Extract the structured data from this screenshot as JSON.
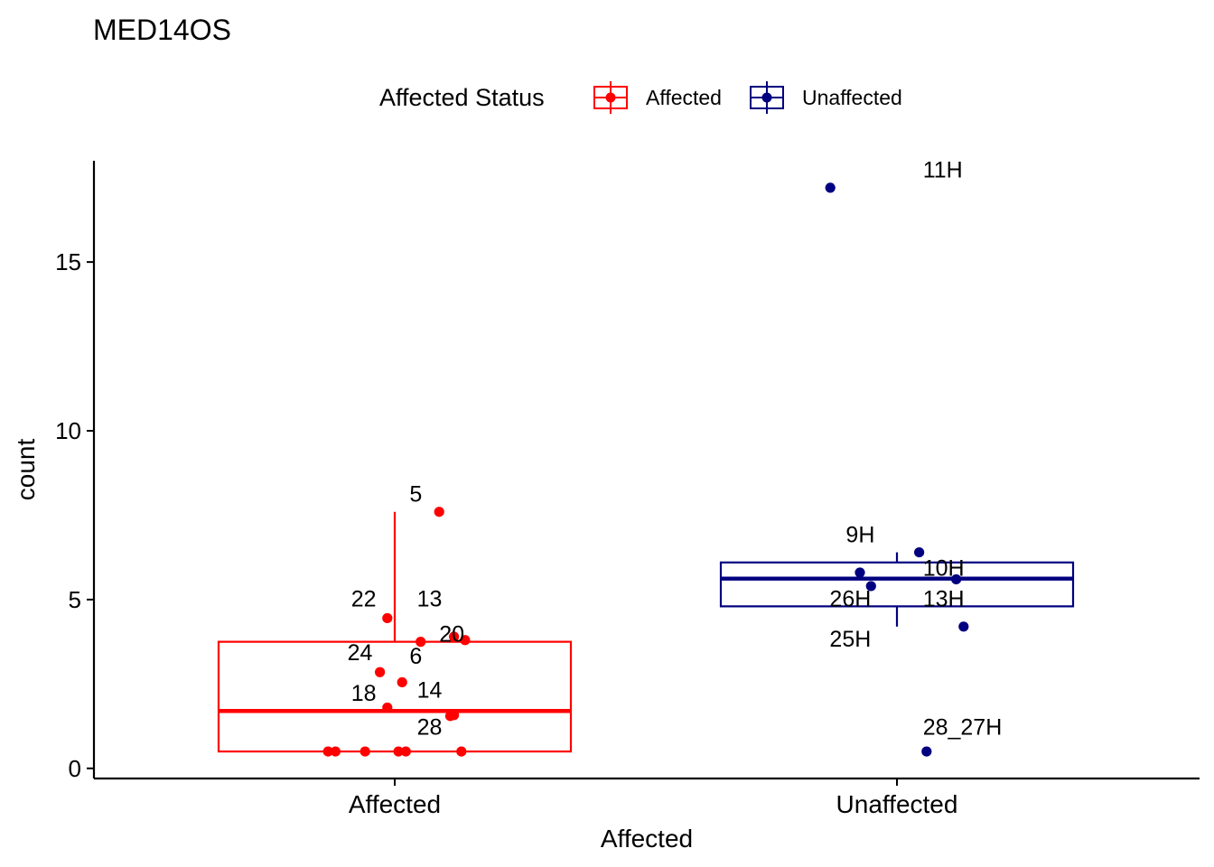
{
  "chart_data": {
    "type": "boxplot",
    "title": "MED14OS",
    "xlabel": "Affected",
    "ylabel": "count",
    "ylim": [
      -0.3,
      18.0
    ],
    "yticks": [
      0,
      5,
      10,
      15
    ],
    "categories": [
      "Affected",
      "Unaffected"
    ],
    "grid": false,
    "legend": {
      "title": "Affected Status",
      "position": "top",
      "entries": [
        {
          "label": "Affected",
          "color": "#ff0000"
        },
        {
          "label": "Unaffected",
          "color": "#000080"
        }
      ]
    },
    "series": [
      {
        "name": "Affected",
        "color": "#ff0000",
        "box": {
          "whisker_low": 0.5,
          "q1": 0.5,
          "median": 1.7,
          "q3": 3.75,
          "whisker_high": 7.6
        },
        "points": [
          {
            "x": 0.12,
            "y": 7.6
          },
          {
            "x": -0.02,
            "y": 4.45
          },
          {
            "x": 0.07,
            "y": 3.75
          },
          {
            "x": 0.16,
            "y": 3.9
          },
          {
            "x": 0.19,
            "y": 3.8
          },
          {
            "x": -0.04,
            "y": 2.85
          },
          {
            "x": 0.02,
            "y": 2.55
          },
          {
            "x": -0.02,
            "y": 1.8
          },
          {
            "x": 0.16,
            "y": 1.58
          },
          {
            "x": 0.15,
            "y": 1.55
          },
          {
            "x": -0.18,
            "y": 0.5
          },
          {
            "x": -0.16,
            "y": 0.5
          },
          {
            "x": -0.08,
            "y": 0.5
          },
          {
            "x": 0.01,
            "y": 0.5
          },
          {
            "x": 0.03,
            "y": 0.5
          },
          {
            "x": 0.18,
            "y": 0.5
          }
        ],
        "labels": [
          {
            "text": "5",
            "x": 0.04,
            "y": 7.9
          },
          {
            "text": "22",
            "x": -0.05,
            "y": 4.8
          },
          {
            "text": "13",
            "x": 0.06,
            "y": 4.8
          },
          {
            "text": "20",
            "x": 0.12,
            "y": 3.75
          },
          {
            "text": "24",
            "x": -0.06,
            "y": 3.2
          },
          {
            "text": "6",
            "x": 0.04,
            "y": 3.1
          },
          {
            "text": "18",
            "x": -0.05,
            "y": 2.0
          },
          {
            "text": "14",
            "x": 0.06,
            "y": 2.1
          },
          {
            "text": "28",
            "x": 0.06,
            "y": 1.0
          }
        ]
      },
      {
        "name": "Unaffected",
        "color": "#000080",
        "box": {
          "whisker_low": 4.2,
          "q1": 4.8,
          "median": 5.62,
          "q3": 6.1,
          "whisker_high": 6.4
        },
        "points": [
          {
            "x": -0.18,
            "y": 17.2
          },
          {
            "x": 0.06,
            "y": 6.4
          },
          {
            "x": -0.1,
            "y": 5.8
          },
          {
            "x": -0.07,
            "y": 5.4
          },
          {
            "x": 0.16,
            "y": 5.6
          },
          {
            "x": 0.18,
            "y": 4.2
          },
          {
            "x": 0.08,
            "y": 0.5
          }
        ],
        "labels": [
          {
            "text": "11H",
            "x": 0.07,
            "y": 17.5
          },
          {
            "text": "9H",
            "x": -0.06,
            "y": 6.7
          },
          {
            "text": "10H",
            "x": 0.07,
            "y": 5.7
          },
          {
            "text": "26H",
            "x": -0.07,
            "y": 4.8
          },
          {
            "text": "13H",
            "x": 0.07,
            "y": 4.8
          },
          {
            "text": "25H",
            "x": -0.07,
            "y": 3.6
          },
          {
            "text": "28_27H",
            "x": 0.07,
            "y": 1.0
          }
        ]
      }
    ]
  }
}
